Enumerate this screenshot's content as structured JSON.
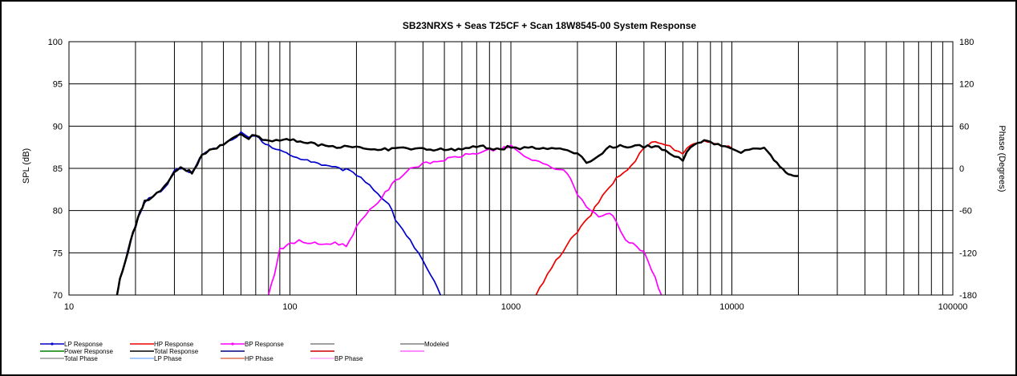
{
  "chart_data": {
    "type": "line",
    "title": "SB23NRXS + Seas T25CF + Scan 18W8545-00   System Response",
    "ylabel": "SPL (dB)",
    "y2label": "Phase (Degrees)",
    "xscale": "log",
    "xlim": [
      10,
      100000
    ],
    "ylim": [
      70,
      100
    ],
    "y2lim": [
      -180,
      180
    ],
    "x_tick_labels": [
      "10",
      "100",
      "1000",
      "10000",
      "100000"
    ],
    "y_tick_labels": [
      "70",
      "75",
      "80",
      "85",
      "90",
      "95",
      "100"
    ],
    "y2_tick_labels": [
      "-180",
      "-120",
      "-60",
      "0",
      "60",
      "120",
      "180"
    ],
    "grid": true,
    "legend_position": "bottom",
    "series": [
      {
        "name": "LP Response",
        "color": "#0000cc",
        "points": [
          [
            16.5,
            70
          ],
          [
            17,
            71.8
          ],
          [
            18,
            74
          ],
          [
            19,
            76.5
          ],
          [
            20,
            78.2
          ],
          [
            21,
            79.8
          ],
          [
            22,
            81
          ],
          [
            24,
            81.8
          ],
          [
            26,
            82.2
          ],
          [
            28,
            83.2
          ],
          [
            30,
            84.6
          ],
          [
            32,
            85
          ],
          [
            34,
            84.8
          ],
          [
            36,
            84.5
          ],
          [
            38,
            85.5
          ],
          [
            40,
            86.7
          ],
          [
            45,
            87.3
          ],
          [
            50,
            87.8
          ],
          [
            55,
            88.5
          ],
          [
            60,
            89.2
          ],
          [
            65,
            88.6
          ],
          [
            70,
            88.8
          ],
          [
            75,
            88.2
          ],
          [
            80,
            87.6
          ],
          [
            90,
            87.2
          ],
          [
            100,
            86.5
          ],
          [
            120,
            86.0
          ],
          [
            150,
            85.2
          ],
          [
            180,
            84.8
          ],
          [
            200,
            84.3
          ],
          [
            220,
            83.5
          ],
          [
            250,
            82.0
          ],
          [
            280,
            80.8
          ],
          [
            300,
            79.0
          ],
          [
            350,
            76.5
          ],
          [
            400,
            74.0
          ],
          [
            450,
            71.5
          ],
          [
            480,
            70
          ]
        ]
      },
      {
        "name": "HP Response",
        "color": "#ee0000",
        "points": [
          [
            1300,
            70
          ],
          [
            1400,
            71.5
          ],
          [
            1600,
            74
          ],
          [
            1800,
            76
          ],
          [
            2000,
            77.5
          ],
          [
            2300,
            79.5
          ],
          [
            2600,
            81.8
          ],
          [
            3000,
            83.8
          ],
          [
            3500,
            85.2
          ],
          [
            4000,
            87.6
          ],
          [
            4500,
            88.2
          ],
          [
            5000,
            87.8
          ],
          [
            5500,
            87.3
          ],
          [
            6000,
            86.8
          ],
          [
            6500,
            87.6
          ],
          [
            7000,
            88.0
          ],
          [
            7500,
            88.4
          ],
          [
            8000,
            88.0
          ],
          [
            9000,
            87.8
          ],
          [
            10000,
            87.4
          ]
        ]
      },
      {
        "name": "BP Response",
        "color": "#ff00ff",
        "points": [
          [
            80,
            70
          ],
          [
            85,
            72.5
          ],
          [
            90,
            75.5
          ],
          [
            100,
            76
          ],
          [
            110,
            76.4
          ],
          [
            120,
            76.2
          ],
          [
            140,
            76
          ],
          [
            160,
            76.2
          ],
          [
            180,
            75.8
          ],
          [
            200,
            78
          ],
          [
            220,
            79.6
          ],
          [
            250,
            81
          ],
          [
            280,
            82.6
          ],
          [
            300,
            83.5
          ],
          [
            350,
            85
          ],
          [
            400,
            85.5
          ],
          [
            500,
            86
          ],
          [
            600,
            86.5
          ],
          [
            700,
            86.8
          ],
          [
            800,
            87.2
          ],
          [
            900,
            87.3
          ],
          [
            1000,
            87.6
          ],
          [
            1100,
            86.8
          ],
          [
            1200,
            86.2
          ],
          [
            1400,
            85.5
          ],
          [
            1600,
            85.0
          ],
          [
            1800,
            84.5
          ],
          [
            2000,
            82.0
          ],
          [
            2200,
            80.5
          ],
          [
            2500,
            79.2
          ],
          [
            2800,
            79.8
          ],
          [
            3000,
            78.8
          ],
          [
            3300,
            76.5
          ],
          [
            3700,
            75.8
          ],
          [
            4000,
            75
          ],
          [
            4500,
            72
          ],
          [
            4800,
            70
          ]
        ]
      },
      {
        "name": "Total Response",
        "color": "#000000",
        "points": [
          [
            16.5,
            70
          ],
          [
            17,
            71.8
          ],
          [
            18,
            74
          ],
          [
            19,
            76.5
          ],
          [
            20,
            78.2
          ],
          [
            21,
            79.8
          ],
          [
            22,
            81
          ],
          [
            24,
            81.8
          ],
          [
            26,
            82.2
          ],
          [
            28,
            83.2
          ],
          [
            30,
            84.6
          ],
          [
            32,
            85
          ],
          [
            34,
            84.8
          ],
          [
            36,
            84.5
          ],
          [
            38,
            85.5
          ],
          [
            40,
            86.7
          ],
          [
            45,
            87.3
          ],
          [
            50,
            87.8
          ],
          [
            55,
            88.5
          ],
          [
            60,
            89.2
          ],
          [
            65,
            88.6
          ],
          [
            70,
            89.0
          ],
          [
            75,
            88.4
          ],
          [
            80,
            88.3
          ],
          [
            90,
            88.4
          ],
          [
            100,
            88.5
          ],
          [
            120,
            88.0
          ],
          [
            150,
            87.6
          ],
          [
            200,
            87.6
          ],
          [
            250,
            87.1
          ],
          [
            300,
            87.4
          ],
          [
            400,
            87.3
          ],
          [
            500,
            87.2
          ],
          [
            600,
            87.3
          ],
          [
            700,
            87.5
          ],
          [
            750,
            87.8
          ],
          [
            800,
            87.2
          ],
          [
            900,
            87.3
          ],
          [
            1000,
            87.6
          ],
          [
            1100,
            87.4
          ],
          [
            1200,
            87.6
          ],
          [
            1400,
            87.3
          ],
          [
            1600,
            87.4
          ],
          [
            1800,
            87.2
          ],
          [
            2000,
            86.8
          ],
          [
            2200,
            85.8
          ],
          [
            2500,
            86.4
          ],
          [
            2800,
            87.6
          ],
          [
            3000,
            87.6
          ],
          [
            3500,
            87.6
          ],
          [
            4000,
            87.6
          ],
          [
            4500,
            87.6
          ],
          [
            5000,
            87.2
          ],
          [
            5500,
            86.5
          ],
          [
            6000,
            86.0
          ],
          [
            6500,
            87.6
          ],
          [
            7000,
            88.0
          ],
          [
            7500,
            88.4
          ],
          [
            8000,
            88.0
          ],
          [
            9000,
            87.8
          ],
          [
            10000,
            87.2
          ],
          [
            11000,
            86.8
          ],
          [
            12000,
            87.3
          ],
          [
            13000,
            87.4
          ],
          [
            14000,
            87.3
          ],
          [
            15000,
            86.5
          ],
          [
            16000,
            85.6
          ],
          [
            17000,
            84.8
          ],
          [
            18000,
            84.4
          ],
          [
            19000,
            84.2
          ],
          [
            20000,
            84.1
          ]
        ]
      }
    ],
    "legend": [
      {
        "label": "LP Response",
        "color": "#0000cc",
        "marker": true
      },
      {
        "label": "HP Response",
        "color": "#ee0000",
        "marker": false
      },
      {
        "label": "BP Response",
        "color": "#ff00ff",
        "marker": true
      },
      {
        "label": "",
        "color": "#808080",
        "marker": false
      },
      {
        "label": "Modeled",
        "color": "#808080",
        "marker": false
      },
      {
        "label": "Power Response",
        "color": "#008000",
        "marker": false
      },
      {
        "label": "Total Response",
        "color": "#000000",
        "marker": false
      },
      {
        "label": "",
        "color": "#000080",
        "marker": false
      },
      {
        "label": "",
        "color": "#cc0000",
        "marker": false
      },
      {
        "label": "",
        "color": "#ff66ff",
        "marker": false
      },
      {
        "label": "Total Phase",
        "color": "#999999",
        "marker": false
      },
      {
        "label": "LP Phase",
        "color": "#88bbff",
        "marker": false
      },
      {
        "label": "HP Phase",
        "color": "#dd7755",
        "marker": false
      },
      {
        "label": "BP Phase",
        "color": "#ffaaff",
        "marker": false
      }
    ]
  }
}
